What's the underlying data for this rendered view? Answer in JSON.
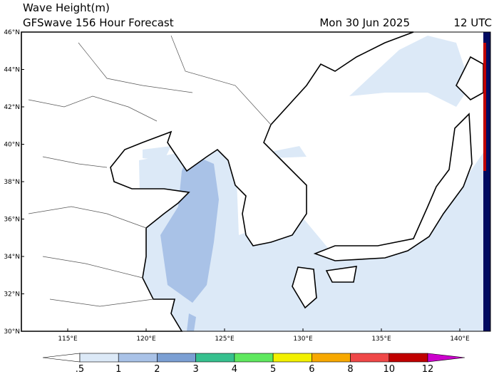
{
  "title": "Wave Height(m)",
  "subtitle": "GFSwave 156 Hour Forecast",
  "date": "Mon 30 Jun 2025",
  "time": "12 UTC",
  "lat_labels": [
    "46°N",
    "44°N",
    "42°N",
    "40°N",
    "38°N",
    "36°N",
    "34°N",
    "32°N",
    "30°N"
  ],
  "lon_labels": [
    "115°E",
    "120°E",
    "125°E",
    "130°E",
    "135°E",
    "140°E"
  ],
  "colorbar": {
    "labels": [
      ".5",
      "1",
      "2",
      "3",
      "4",
      "5",
      "6",
      "8",
      "10",
      "12"
    ],
    "colors": [
      "#ffffff",
      "#dce9f7",
      "#a9c2e7",
      "#7b9fd3",
      "#36c08e",
      "#5fe85f",
      "#f2f000",
      "#f7a800",
      "#ef4848",
      "#c00000",
      "#cc00cc"
    ]
  }
}
